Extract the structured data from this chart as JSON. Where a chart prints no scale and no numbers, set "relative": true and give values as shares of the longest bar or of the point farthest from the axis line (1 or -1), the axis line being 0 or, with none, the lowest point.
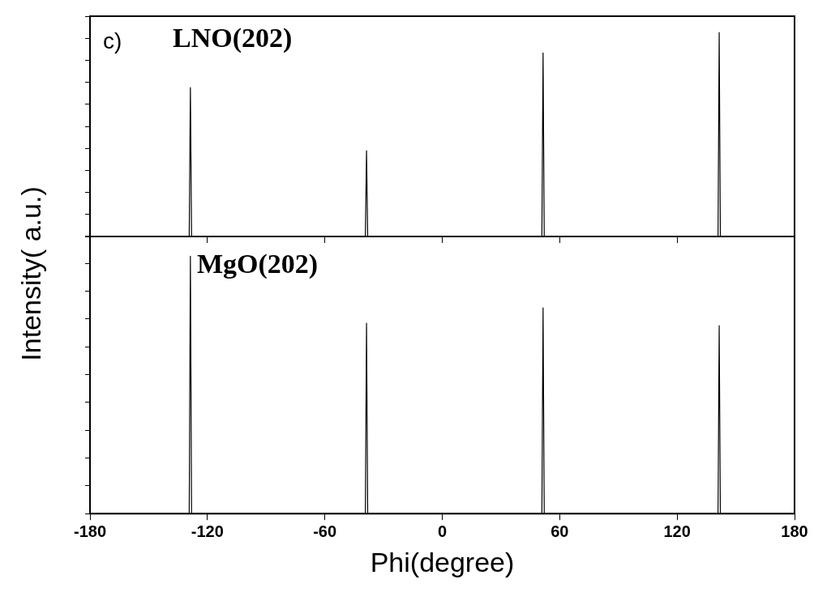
{
  "chart_data": [
    {
      "type": "line",
      "relative": true,
      "ylabel": "Intensity( a.u.)",
      "annotations": [
        "c)",
        "LNO(202)"
      ],
      "xlim": [
        -180,
        180
      ],
      "xticks": [
        -180,
        -120,
        -60,
        0,
        60,
        120,
        180
      ],
      "tick_labels": false,
      "grid": false,
      "legend": false,
      "marker": "none",
      "line_style": "solid",
      "series": [
        {
          "color": "#000000",
          "x": [
            -180,
            -129.3,
            -128.7,
            -128.1,
            -39.3,
            -38.7,
            -38.1,
            50.9,
            51.5,
            52.1,
            140.9,
            141.5,
            142.1,
            180
          ],
          "values": [
            0,
            0,
            0.73,
            0,
            0,
            0.42,
            0,
            0,
            0.9,
            0,
            0,
            1,
            0,
            0
          ]
        }
      ]
    },
    {
      "type": "line",
      "relative": true,
      "xlabel": "Phi(degree)",
      "annotations": [
        "MgO(202)"
      ],
      "xlim": [
        -180,
        180
      ],
      "xticks": [
        -180,
        -120,
        -60,
        0,
        60,
        120,
        180
      ],
      "tick_labels": "x",
      "grid": false,
      "legend": false,
      "marker": "none",
      "line_style": "solid",
      "series": [
        {
          "color": "#000000",
          "x": [
            -180,
            -129.3,
            -128.7,
            -128.1,
            -39.3,
            -38.7,
            -38.1,
            50.9,
            51.5,
            52.1,
            140.9,
            141.5,
            142.1,
            180
          ],
          "values": [
            0,
            0,
            1,
            0,
            0,
            0.74,
            0,
            0,
            0.8,
            0,
            0,
            0.73,
            0,
            0
          ]
        }
      ]
    }
  ]
}
